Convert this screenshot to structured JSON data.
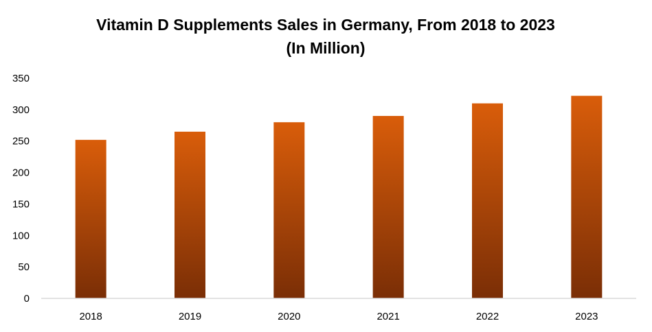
{
  "chart_data": {
    "type": "bar",
    "title": "Vitamin D Supplements Sales in Germany, From 2018 to 2023",
    "subtitle": "(In Million)",
    "xlabel": "",
    "ylabel": "",
    "categories": [
      "2018",
      "2019",
      "2020",
      "2021",
      "2022",
      "2023"
    ],
    "values": [
      252,
      265,
      280,
      290,
      310,
      322
    ],
    "ylim": [
      0,
      350
    ],
    "yticks": [
      0,
      50,
      100,
      150,
      200,
      250,
      300,
      350
    ],
    "grid": false,
    "legend": "none",
    "colors": {
      "bar_top": "#d95d0a",
      "bar_bottom": "#7a2e06",
      "axis": "#d9d9d9"
    }
  }
}
